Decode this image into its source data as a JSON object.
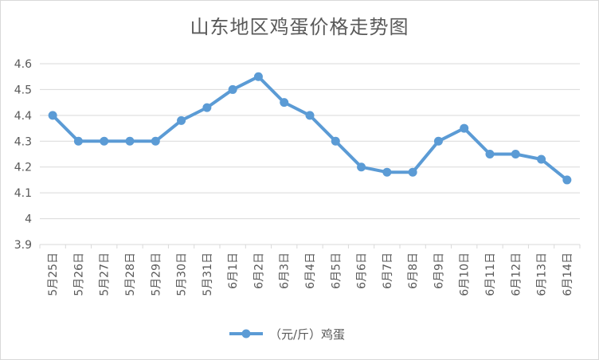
{
  "chart_data": {
    "type": "line",
    "title": "山东地区鸡蛋价格走势图",
    "categories": [
      "5月25日",
      "5月26日",
      "5月27日",
      "5月28日",
      "5月29日",
      "5月30日",
      "5月31日",
      "6月1日",
      "6月2日",
      "6月3日",
      "6月4日",
      "6月5日",
      "6月6日",
      "6月7日",
      "6月8日",
      "6月9日",
      "6月10日",
      "6月11日",
      "6月12日",
      "6月13日",
      "6月14日"
    ],
    "series": [
      {
        "name": "（元/斤）鸡蛋",
        "values": [
          4.4,
          4.3,
          4.3,
          4.3,
          4.3,
          4.38,
          4.43,
          4.5,
          4.55,
          4.45,
          4.4,
          4.3,
          4.2,
          4.18,
          4.18,
          4.3,
          4.35,
          4.25,
          4.25,
          4.23,
          4.15
        ]
      }
    ],
    "ylim": [
      3.9,
      4.6
    ],
    "yticks": [
      "3.9",
      "4",
      "4.1",
      "4.2",
      "4.3",
      "4.4",
      "4.5",
      "4.6"
    ],
    "grid": true,
    "legend_position": "bottom",
    "colors": {
      "line": "#5b9bd5",
      "grid": "#d9d9d9",
      "text": "#595959"
    }
  }
}
